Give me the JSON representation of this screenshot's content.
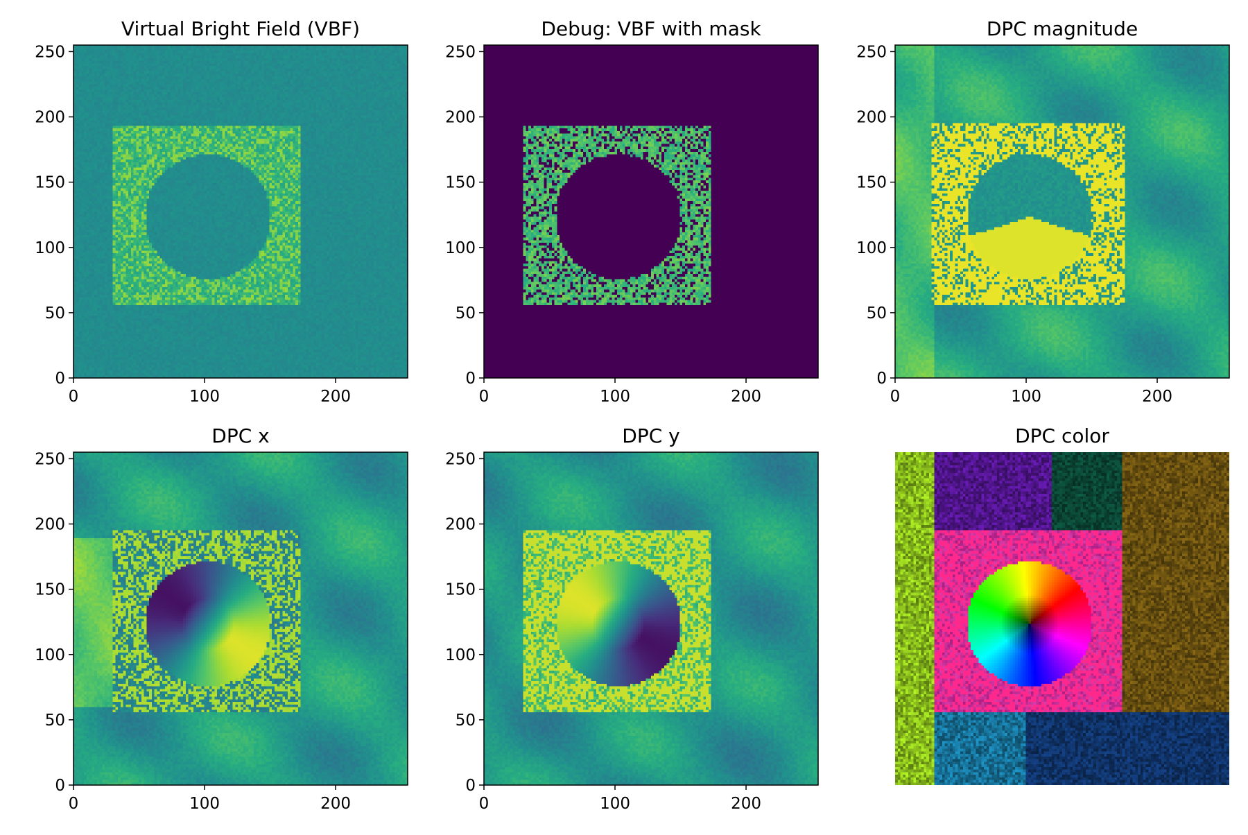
{
  "chart_data": [
    {
      "type": "heatmap",
      "title": "Virtual Bright Field (VBF)",
      "xlim": [
        0,
        255
      ],
      "ylim": [
        0,
        255
      ],
      "xticks": [
        "0",
        "100",
        "200"
      ],
      "yticks": [
        "0",
        "50",
        "100",
        "150",
        "200",
        "250"
      ],
      "colormap": "viridis",
      "content": "vbf",
      "square_region": {
        "x": [
          31,
          173
        ],
        "y": [
          57,
          194
        ]
      },
      "circle": {
        "cx": 103,
        "cy": 124,
        "r": 48
      }
    },
    {
      "type": "heatmap",
      "title": "Debug: VBF with mask",
      "xlim": [
        0,
        255
      ],
      "ylim": [
        0,
        255
      ],
      "xticks": [
        "0",
        "100",
        "200"
      ],
      "yticks": [
        "0",
        "50",
        "100",
        "150",
        "200",
        "250"
      ],
      "colormap": "viridis",
      "content": "mask",
      "square_region": {
        "x": [
          31,
          173
        ],
        "y": [
          57,
          194
        ]
      },
      "circle": {
        "cx": 103,
        "cy": 124,
        "r": 48
      }
    },
    {
      "type": "heatmap",
      "title": "DPC magnitude",
      "xlim": [
        0,
        255
      ],
      "ylim": [
        0,
        255
      ],
      "xticks": [
        "0",
        "100",
        "200"
      ],
      "yticks": [
        "0",
        "50",
        "100",
        "150",
        "200",
        "250"
      ],
      "colormap": "viridis",
      "content": "magnitude",
      "square_region": {
        "x": [
          29,
          175
        ],
        "y": [
          57,
          195
        ]
      },
      "circle": {
        "cx": 103,
        "cy": 124,
        "r": 48
      }
    },
    {
      "type": "heatmap",
      "title": "DPC x",
      "xlim": [
        0,
        255
      ],
      "ylim": [
        0,
        255
      ],
      "xticks": [
        "0",
        "100",
        "200"
      ],
      "yticks": [
        "0",
        "50",
        "100",
        "150",
        "200",
        "250"
      ],
      "colormap": "viridis",
      "content": "dpcx",
      "square_region": {
        "x": [
          31,
          173
        ],
        "y": [
          57,
          195
        ]
      },
      "circle": {
        "cx": 103,
        "cy": 124,
        "r": 48
      }
    },
    {
      "type": "heatmap",
      "title": "DPC y",
      "xlim": [
        0,
        255
      ],
      "ylim": [
        0,
        255
      ],
      "xticks": [
        "0",
        "100",
        "200"
      ],
      "yticks": [
        "0",
        "50",
        "100",
        "150",
        "200",
        "250"
      ],
      "colormap": "viridis",
      "content": "dpcy",
      "square_region": {
        "x": [
          31,
          173
        ],
        "y": [
          57,
          195
        ]
      },
      "circle": {
        "cx": 103,
        "cy": 124,
        "r": 48
      }
    },
    {
      "type": "heatmap",
      "title": "DPC color",
      "xlim": [
        0,
        255
      ],
      "ylim": [
        0,
        255
      ],
      "xticks": [],
      "yticks": [],
      "colormap": "hsv",
      "content": "color",
      "square_region": {
        "x": [
          31,
          173
        ],
        "y": [
          57,
          195
        ]
      },
      "circle": {
        "cx": 103,
        "cy": 124,
        "r": 48
      }
    }
  ],
  "colors": {
    "viridis_low": "#440154",
    "viridis_mid": "#21918c",
    "viridis_high": "#fde725",
    "background": "#ffffff"
  }
}
